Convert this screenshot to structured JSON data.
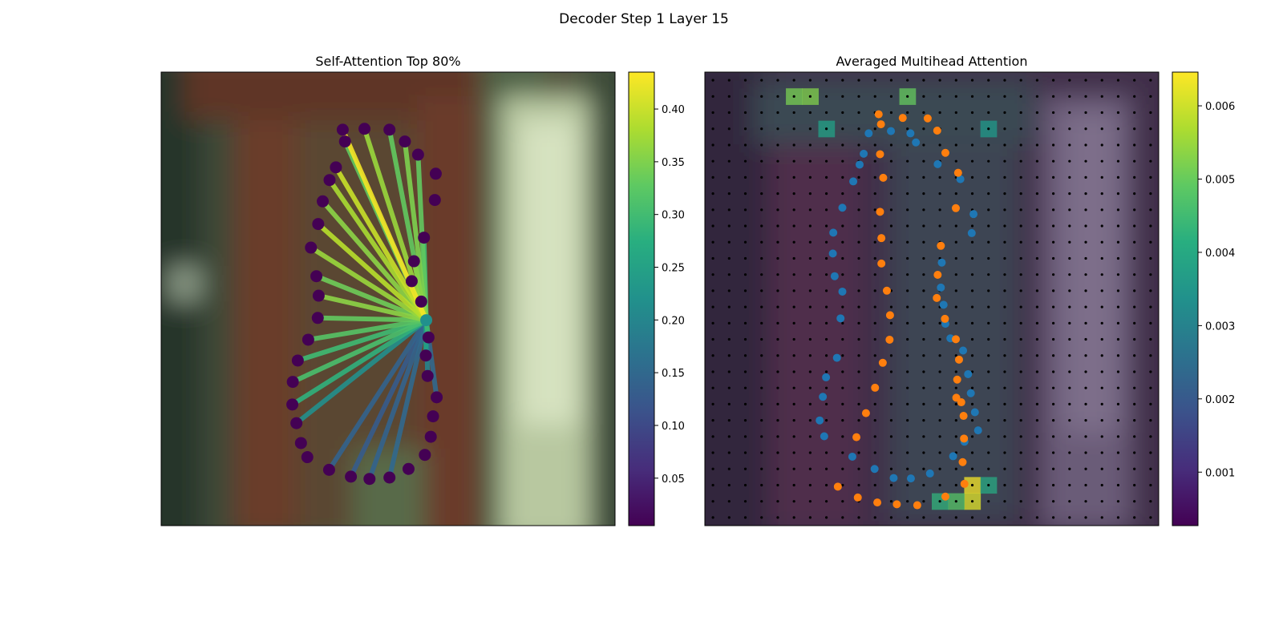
{
  "figure": {
    "title": "Decoder Step 1 Layer 15"
  },
  "chart_data": [
    {
      "type": "scatter",
      "title": "Self-Attention Top 80%",
      "xlim": [
        0,
        100
      ],
      "ylim": [
        100,
        0
      ],
      "background": "blurred photo: brown tree trunk center, pale green/white column right, dark green left",
      "query_point": {
        "x": 58.4,
        "y": 45.3
      },
      "points": [
        {
          "x": 32.2,
          "y": 15.1
        },
        {
          "x": 37.0,
          "y": 12.3
        },
        {
          "x": 41.8,
          "y": 10.8
        },
        {
          "x": 45.9,
          "y": 10.3
        },
        {
          "x": 50.3,
          "y": 10.6
        },
        {
          "x": 54.5,
          "y": 12.5
        },
        {
          "x": 58.1,
          "y": 15.6
        },
        {
          "x": 59.4,
          "y": 19.6
        },
        {
          "x": 59.9,
          "y": 24.1
        },
        {
          "x": 60.7,
          "y": 28.3
        },
        {
          "x": 58.7,
          "y": 33.0
        },
        {
          "x": 58.3,
          "y": 37.5
        },
        {
          "x": 58.9,
          "y": 41.5
        },
        {
          "x": 57.3,
          "y": 49.4
        },
        {
          "x": 55.2,
          "y": 53.9
        },
        {
          "x": 55.7,
          "y": 58.3
        },
        {
          "x": 57.9,
          "y": 63.5
        },
        {
          "x": 60.3,
          "y": 71.8
        },
        {
          "x": 60.5,
          "y": 77.6
        },
        {
          "x": 56.6,
          "y": 81.8
        },
        {
          "x": 53.7,
          "y": 84.7
        },
        {
          "x": 50.3,
          "y": 87.3
        },
        {
          "x": 44.8,
          "y": 87.5
        },
        {
          "x": 40.0,
          "y": 87.3
        },
        {
          "x": 40.5,
          "y": 84.7
        },
        {
          "x": 38.5,
          "y": 79.0
        },
        {
          "x": 37.1,
          "y": 76.2
        },
        {
          "x": 35.6,
          "y": 71.5
        },
        {
          "x": 34.6,
          "y": 66.5
        },
        {
          "x": 33.0,
          "y": 61.3
        },
        {
          "x": 34.2,
          "y": 55.0
        },
        {
          "x": 34.7,
          "y": 50.7
        },
        {
          "x": 34.5,
          "y": 45.8
        },
        {
          "x": 32.4,
          "y": 41.0
        },
        {
          "x": 30.1,
          "y": 36.4
        },
        {
          "x": 29.0,
          "y": 31.7
        },
        {
          "x": 28.9,
          "y": 26.7
        },
        {
          "x": 29.8,
          "y": 22.6
        },
        {
          "x": 30.8,
          "y": 18.2
        }
      ],
      "links": [
        {
          "to": 1,
          "w": 0.14
        },
        {
          "to": 2,
          "w": 0.13
        },
        {
          "to": 3,
          "w": 0.14
        },
        {
          "to": 4,
          "w": 0.15
        },
        {
          "to": 9,
          "w": 0.15
        },
        {
          "to": 10,
          "w": 0.2
        },
        {
          "to": 11,
          "w": 0.25
        },
        {
          "to": 12,
          "w": 0.3
        },
        {
          "to": 13,
          "w": 0.35
        },
        {
          "to": 14,
          "w": 0.34
        },
        {
          "to": 15,
          "w": 0.36
        },
        {
          "to": 16,
          "w": 0.3
        },
        {
          "to": 19,
          "w": 0.33
        },
        {
          "to": 20,
          "w": 0.35
        },
        {
          "to": 21,
          "w": 0.33
        },
        {
          "to": 22,
          "w": 0.37
        },
        {
          "to": 23,
          "w": 0.43
        },
        {
          "to": 24,
          "w": 0.33
        },
        {
          "to": 25,
          "w": 0.4
        },
        {
          "to": 26,
          "w": 0.38
        },
        {
          "to": 27,
          "w": 0.36
        },
        {
          "to": 28,
          "w": 0.39
        },
        {
          "to": 29,
          "w": 0.37
        },
        {
          "to": 30,
          "w": 0.34
        },
        {
          "to": 31,
          "w": 0.36
        },
        {
          "to": 32,
          "w": 0.33
        },
        {
          "to": 33,
          "w": 0.32
        },
        {
          "to": 34,
          "w": 0.3
        },
        {
          "to": 35,
          "w": 0.31
        },
        {
          "to": 36,
          "w": 0.28
        },
        {
          "to": 37,
          "w": 0.22
        }
      ],
      "point_color": "#440154",
      "query_color": "#21908d",
      "colorbar": {
        "range": [
          0.005,
          0.435
        ],
        "ticks": [
          0.05,
          0.1,
          0.15,
          0.2,
          0.25,
          0.3,
          0.35,
          0.4
        ],
        "tick_labels": [
          "0.05",
          "0.10",
          "0.15",
          "0.20",
          "0.25",
          "0.30",
          "0.35",
          "0.40"
        ],
        "cmap": "viridis"
      }
    },
    {
      "type": "heatmap",
      "title": "Averaged Multihead Attention",
      "xlim": [
        0,
        100
      ],
      "ylim": [
        100,
        0
      ],
      "grid_size": [
        28,
        28
      ],
      "grid_dots": true,
      "hotspots": [
        {
          "col": 16,
          "row": 25,
          "value": 0.0064
        },
        {
          "col": 16,
          "row": 26,
          "value": 0.0062
        },
        {
          "col": 15,
          "row": 26,
          "value": 0.0048
        },
        {
          "col": 5,
          "row": 1,
          "value": 0.0052
        },
        {
          "col": 6,
          "row": 1,
          "value": 0.0053
        },
        {
          "col": 12,
          "row": 1,
          "value": 0.005
        },
        {
          "col": 7,
          "row": 3,
          "value": 0.0038
        },
        {
          "col": 17,
          "row": 3,
          "value": 0.0036
        },
        {
          "col": 14,
          "row": 26,
          "value": 0.0043
        },
        {
          "col": 17,
          "row": 25,
          "value": 0.004
        }
      ],
      "series": [
        {
          "name": "",
          "color": "#1f77b4",
          "points": [
            {
              "x": 32.5,
              "y": 15.2
            },
            {
              "x": 37.4,
              "y": 12.5
            },
            {
              "x": 41.6,
              "y": 10.5
            },
            {
              "x": 45.4,
              "y": 10.4
            },
            {
              "x": 49.6,
              "y": 11.5
            },
            {
              "x": 54.7,
              "y": 15.3
            },
            {
              "x": 57.2,
              "y": 18.5
            },
            {
              "x": 60.2,
              "y": 21.0
            },
            {
              "x": 59.5,
              "y": 25.0
            },
            {
              "x": 58.6,
              "y": 29.2
            },
            {
              "x": 58.0,
              "y": 33.4
            },
            {
              "x": 56.9,
              "y": 38.6
            },
            {
              "x": 54.1,
              "y": 41.3
            },
            {
              "x": 53.0,
              "y": 44.5
            },
            {
              "x": 52.6,
              "y": 48.7
            },
            {
              "x": 52.0,
              "y": 52.5
            },
            {
              "x": 52.2,
              "y": 58.0
            },
            {
              "x": 58.8,
              "y": 64.5
            },
            {
              "x": 59.2,
              "y": 68.7
            },
            {
              "x": 56.3,
              "y": 76.4
            },
            {
              "x": 51.3,
              "y": 79.7
            },
            {
              "x": 46.5,
              "y": 84.5
            },
            {
              "x": 45.3,
              "y": 86.5
            },
            {
              "x": 41.0,
              "y": 87.0
            },
            {
              "x": 36.1,
              "y": 86.5
            },
            {
              "x": 35.0,
              "y": 82.0
            },
            {
              "x": 34.1,
              "y": 79.6
            },
            {
              "x": 32.7,
              "y": 75.9
            },
            {
              "x": 30.3,
              "y": 70.1
            },
            {
              "x": 28.3,
              "y": 64.6
            },
            {
              "x": 28.2,
              "y": 60.0
            },
            {
              "x": 28.6,
              "y": 55.0
            },
            {
              "x": 30.3,
              "y": 51.6
            },
            {
              "x": 29.9,
              "y": 45.7
            },
            {
              "x": 29.1,
              "y": 37.0
            },
            {
              "x": 26.7,
              "y": 32.7
            },
            {
              "x": 26.0,
              "y": 28.4
            },
            {
              "x": 25.3,
              "y": 23.2
            },
            {
              "x": 26.3,
              "y": 19.7
            }
          ]
        },
        {
          "name": "",
          "color": "#ff7f0e",
          "points": [
            {
              "x": 29.3,
              "y": 8.6
            },
            {
              "x": 33.7,
              "y": 6.2
            },
            {
              "x": 38.0,
              "y": 5.1
            },
            {
              "x": 42.3,
              "y": 4.7
            },
            {
              "x": 46.8,
              "y": 4.5
            },
            {
              "x": 53.0,
              "y": 6.4
            },
            {
              "x": 57.2,
              "y": 9.2
            },
            {
              "x": 56.8,
              "y": 14.0
            },
            {
              "x": 57.1,
              "y": 19.2
            },
            {
              "x": 57.0,
              "y": 24.2
            },
            {
              "x": 56.5,
              "y": 27.2
            },
            {
              "x": 55.4,
              "y": 28.2
            },
            {
              "x": 55.6,
              "y": 32.2
            },
            {
              "x": 56.0,
              "y": 36.6
            },
            {
              "x": 55.3,
              "y": 41.1
            },
            {
              "x": 52.9,
              "y": 45.6
            },
            {
              "x": 51.1,
              "y": 50.2
            },
            {
              "x": 51.3,
              "y": 55.3
            },
            {
              "x": 52.0,
              "y": 61.7
            },
            {
              "x": 55.3,
              "y": 70.0
            },
            {
              "x": 55.8,
              "y": 77.8
            },
            {
              "x": 53.0,
              "y": 82.2
            },
            {
              "x": 51.2,
              "y": 87.1
            },
            {
              "x": 49.1,
              "y": 89.8
            },
            {
              "x": 43.6,
              "y": 89.9
            },
            {
              "x": 38.8,
              "y": 88.5
            },
            {
              "x": 38.3,
              "y": 90.7
            },
            {
              "x": 38.6,
              "y": 81.9
            },
            {
              "x": 39.3,
              "y": 76.7
            },
            {
              "x": 38.6,
              "y": 69.2
            },
            {
              "x": 38.9,
              "y": 63.4
            },
            {
              "x": 38.9,
              "y": 57.8
            },
            {
              "x": 40.1,
              "y": 51.8
            },
            {
              "x": 40.8,
              "y": 46.4
            },
            {
              "x": 40.7,
              "y": 41.0
            },
            {
              "x": 39.2,
              "y": 35.9
            },
            {
              "x": 37.5,
              "y": 30.4
            },
            {
              "x": 35.5,
              "y": 24.8
            },
            {
              "x": 33.4,
              "y": 19.5
            }
          ]
        }
      ],
      "colorbar": {
        "range": [
          0.00027,
          0.00646
        ],
        "ticks": [
          0.001,
          0.002,
          0.003,
          0.004,
          0.005,
          0.006
        ],
        "tick_labels": [
          "0.001",
          "0.002",
          "0.003",
          "0.004",
          "0.005",
          "0.006"
        ],
        "cmap": "viridis"
      }
    }
  ]
}
